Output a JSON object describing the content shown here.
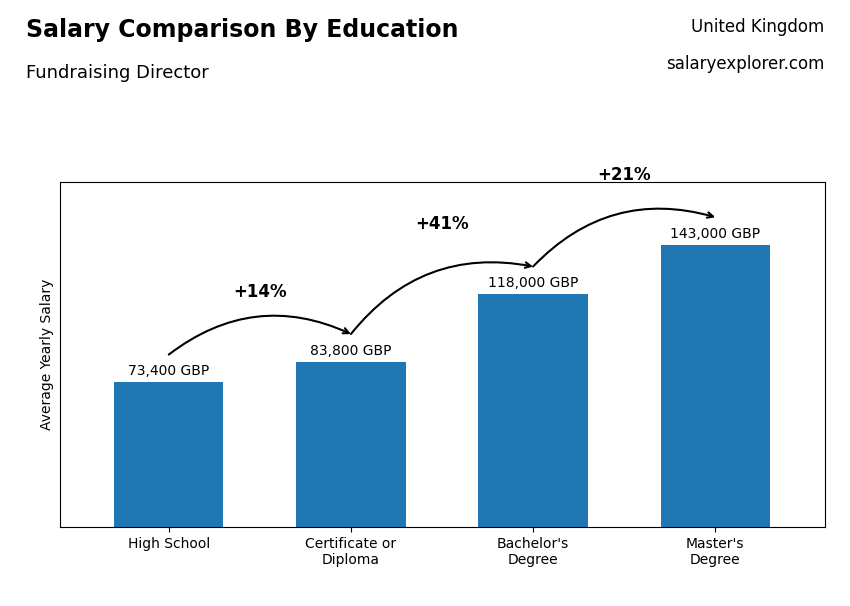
{
  "chart_data": {
    "type": "bar",
    "title": "Salary Comparison By Education",
    "subtitle": "Fundraising Director",
    "y_label": "Average Yearly Salary",
    "categories": [
      "High School",
      "Certificate or\nDiploma",
      "Bachelor's\nDegree",
      "Master's\nDegree"
    ],
    "values": [
      73400,
      83800,
      118000,
      143000
    ],
    "value_labels": [
      "73,400 GBP",
      "83,800 GBP",
      "118,000 GBP",
      "143,000 GBP"
    ],
    "data_labels": true,
    "ylim": [
      0,
      175000
    ],
    "tick_labels": "x",
    "grid": false,
    "annotations": [
      {
        "text": "United Kingdom"
      },
      {
        "text": "salaryexplorer.com"
      },
      {
        "text": "+14%",
        "from": "High School",
        "to": "Certificate or\nDiploma"
      },
      {
        "text": "+41%",
        "from": "Certificate or\nDiploma",
        "to": "Bachelor's\nDegree"
      },
      {
        "text": "+21%",
        "from": "Bachelor's\nDegree",
        "to": "Master's\nDegree"
      }
    ]
  }
}
